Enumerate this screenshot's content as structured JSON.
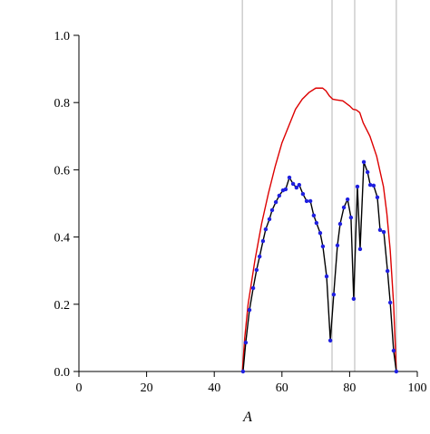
{
  "chart_data": {
    "type": "line",
    "xlabel": "A",
    "xlim": [
      0,
      100
    ],
    "xticks": [
      0,
      20,
      40,
      60,
      80,
      100
    ],
    "ylim": [
      0,
      1.0
    ],
    "yticks": [
      {
        "value": 0,
        "label": "0.0"
      },
      {
        "value": 0.2,
        "label": "0.2"
      },
      {
        "value": 0.4,
        "label": "0.4"
      },
      {
        "value": 0.6,
        "label": "0.6"
      },
      {
        "value": 0.8,
        "label": "0.8"
      },
      {
        "value": 1.0,
        "label": "1.0"
      }
    ],
    "vlines": [
      48.3,
      74.8,
      81.5,
      93.8
    ],
    "vline_color": "#c0c0c0",
    "series": [
      {
        "color": "#dd0000",
        "x": [
          48.3,
          49,
          50,
          52,
          54,
          56,
          58,
          60,
          62,
          64,
          66,
          68,
          70,
          72,
          73,
          74,
          75,
          76,
          78,
          80,
          81,
          82,
          83,
          84,
          86,
          88,
          90,
          91,
          92,
          93,
          93.8
        ],
        "values": [
          0,
          0.1,
          0.2,
          0.33,
          0.44,
          0.53,
          0.61,
          0.68,
          0.73,
          0.78,
          0.81,
          0.83,
          0.843,
          0.843,
          0.835,
          0.82,
          0.81,
          0.808,
          0.805,
          0.79,
          0.78,
          0.778,
          0.77,
          0.74,
          0.7,
          0.64,
          0.55,
          0.47,
          0.36,
          0.2,
          0
        ]
      },
      {
        "color": "#000000",
        "marker_color": "#1f1fe0",
        "x": [
          48.5,
          49.3,
          50.4,
          51.5,
          52.5,
          53.4,
          54.4,
          55.2,
          56.3,
          57.1,
          58.2,
          59.2,
          60.3,
          61.1,
          62.2,
          63.3,
          64.3,
          65.1,
          66.2,
          67.3,
          68.4,
          69.4,
          70.2,
          71.3,
          72.1,
          73.2,
          74.3,
          75.3,
          76.4,
          77.2,
          78.3,
          79.4,
          80.4,
          81.2,
          82.3,
          83.1,
          84.2,
          85.3,
          86.1,
          87.1,
          88.2,
          89.0,
          90.1,
          91.2,
          92.0,
          93.0,
          93.8
        ],
        "values": [
          0,
          0.086,
          0.183,
          0.248,
          0.302,
          0.342,
          0.388,
          0.423,
          0.453,
          0.48,
          0.504,
          0.523,
          0.539,
          0.542,
          0.577,
          0.558,
          0.547,
          0.555,
          0.528,
          0.507,
          0.507,
          0.464,
          0.442,
          0.412,
          0.372,
          0.283,
          0.092,
          0.229,
          0.375,
          0.439,
          0.488,
          0.512,
          0.458,
          0.216,
          0.55,
          0.364,
          0.623,
          0.593,
          0.555,
          0.553,
          0.518,
          0.421,
          0.415,
          0.299,
          0.205,
          0.062,
          0
        ]
      }
    ]
  }
}
